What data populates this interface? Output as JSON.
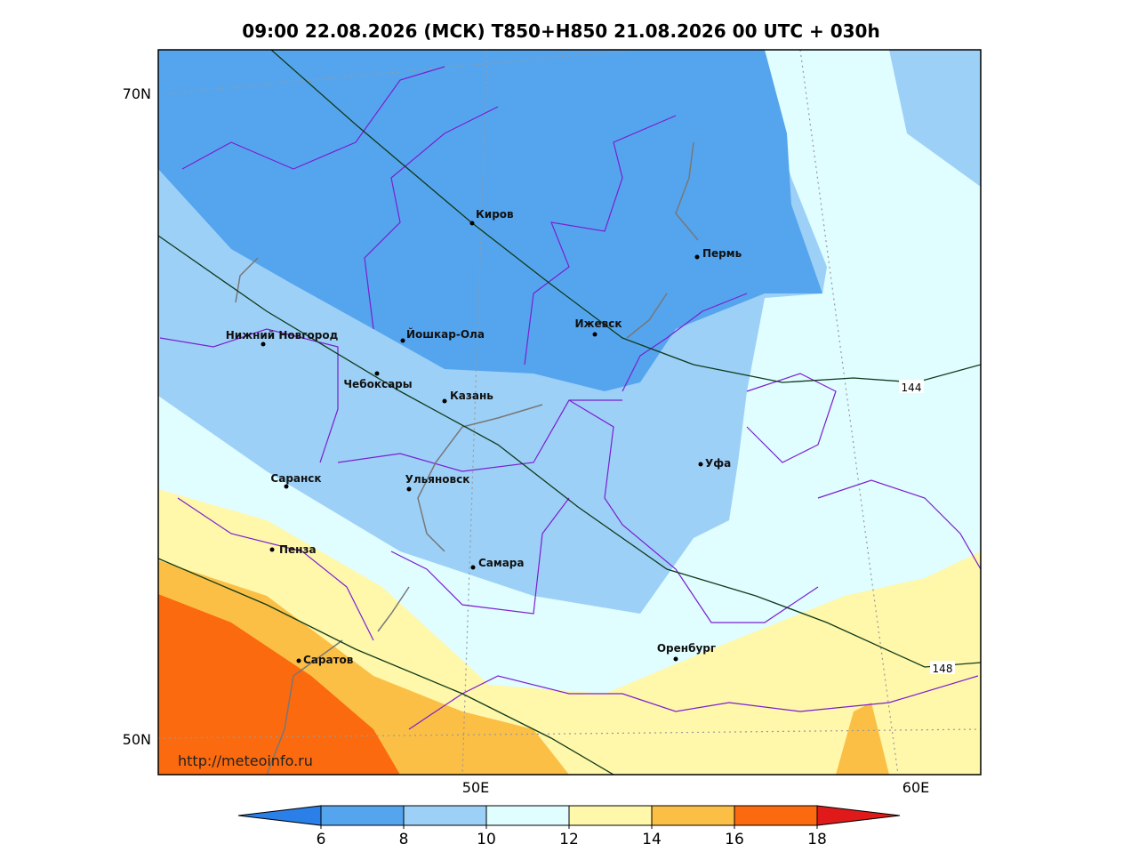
{
  "title": "09:00 22.08.2026 (МСК) T850+H850 21.08.2026 00 UTC + 030h",
  "map": {
    "lat_labels": [
      "70N",
      "50N"
    ],
    "lon_labels": [
      "50E",
      "60E"
    ],
    "cities": [
      "Киров",
      "Пермь",
      "Нижний Новгород",
      "Йошкар-Ола",
      "Ижевск",
      "Чебоксары",
      "Казань",
      "Уфа",
      "Саранск",
      "Ульяновск",
      "Пенза",
      "Самара",
      "Оренбург",
      "Саратов"
    ],
    "contour_labels": [
      144,
      148
    ],
    "watermark": "http://meteoinfo.ru"
  },
  "colorbar": {
    "ticks": [
      6,
      8,
      10,
      12,
      14,
      16,
      18
    ],
    "colors": [
      "#2a7fe8",
      "#55a5ee",
      "#9dd0f7",
      "#e0fdff",
      "#fff7aa",
      "#fbbf45",
      "#fb6a0e",
      "#e01a1a"
    ]
  }
}
